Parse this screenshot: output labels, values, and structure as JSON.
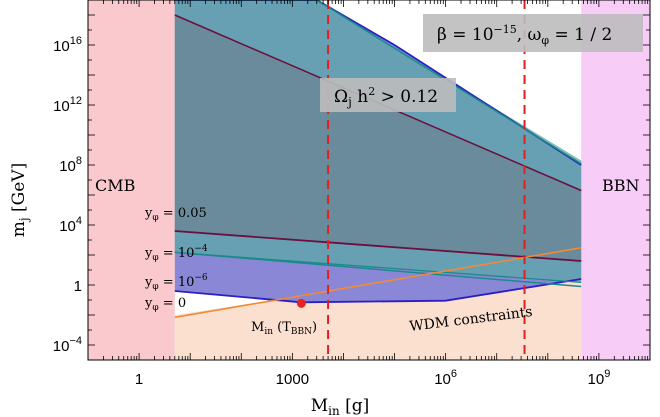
{
  "chart_data": {
    "type": "area",
    "x_scale": "log10",
    "y_scale": "log10",
    "xlim": [
      0.1,
      10000000000.0
    ],
    "ylim": [
      1e-05,
      1e+19
    ],
    "xlabel": "M_in [g]",
    "ylabel": "m_j [GeV]",
    "x_ticks": [
      {
        "value": 1,
        "label": "1"
      },
      {
        "value": 1000,
        "label": "1000"
      },
      {
        "value": 1000000.0,
        "label": "10^6"
      },
      {
        "value": 1000000000.0,
        "label": "10^9"
      }
    ],
    "y_ticks": [
      {
        "value": 0.0001,
        "label": "10^-4"
      },
      {
        "value": 1,
        "label": "1"
      },
      {
        "value": 10000.0,
        "label": "10^4"
      },
      {
        "value": 100000000.0,
        "label": "10^8"
      },
      {
        "value": 1000000000000.0,
        "label": "10^12"
      },
      {
        "value": 1e+16,
        "label": "10^16"
      }
    ],
    "excluded_regions": [
      {
        "label": "CMB",
        "x_range": [
          0.1,
          5
        ],
        "color": "#f9c9cd"
      },
      {
        "label": "BBN",
        "x_range": [
          450000000.0,
          10000000000.0
        ],
        "color": "#f7ccf7"
      },
      {
        "label": "WDM constraints",
        "color": "#fbe0cf",
        "boundary": [
          [
            5,
            0.01
          ],
          [
            10000.0,
            0.5
          ],
          [
            1000000.0,
            0.1
          ],
          [
            450000000.0,
            2.5
          ]
        ]
      }
    ],
    "vertical_lines": [
      {
        "x": 5000,
        "style": "dashed",
        "color": "#e02020"
      },
      {
        "x": 35000000.0,
        "style": "dashed",
        "color": "#e02020"
      }
    ],
    "point": {
      "label": "M_in (T_BBN)",
      "x": 1500,
      "y": 0.06,
      "color": "#e8231e"
    },
    "series": [
      {
        "label": "y_φ = 0",
        "color": "#2a1fc4",
        "lower": [
          [
            5,
            0.4
          ],
          [
            1500,
            0.07
          ],
          [
            1000000.0,
            0.09
          ],
          [
            450000000.0,
            2.5
          ]
        ],
        "upper": [
          [
            5,
            1e+19
          ],
          [
            3000,
            1e+19
          ],
          [
            100000.0,
            1e+16
          ],
          [
            450000000.0,
            100000000.0
          ]
        ]
      },
      {
        "label": "y_φ = 10^-6",
        "color": "#4da7a8",
        "lower": [
          [
            5,
            150.0
          ],
          [
            450000000.0,
            1.5
          ]
        ],
        "upper": [
          [
            5,
            1e+19
          ],
          [
            3000,
            1e+19
          ],
          [
            450000000.0,
            200000000.0
          ]
        ]
      },
      {
        "label": "y_φ = 10^-4",
        "color": "#1a8a8a",
        "line": [
          [
            5,
            150
          ],
          [
            450000000.0,
            0.8
          ]
        ]
      },
      {
        "label": "y_φ = 0.05",
        "color": "#6b0f3e",
        "line": [
          [
            5,
            4000
          ],
          [
            450000000.0,
            40
          ]
        ]
      },
      {
        "label": "upper_curve_teal",
        "color": "#1a8a8a",
        "line": [
          [
            5,
            1e+19
          ],
          [
            3000,
            1e+19
          ],
          [
            450000000.0,
            120000000.0
          ]
        ]
      },
      {
        "label": "upper_curve_maroon",
        "color": "#6b0f3e",
        "line": [
          [
            5,
            1e+18
          ],
          [
            450000000.0,
            2000000.0
          ]
        ]
      }
    ],
    "orange_boundary": {
      "color": "#f28a34",
      "line": [
        [
          5,
          0.007
        ],
        [
          450000000.0,
          300
        ]
      ]
    },
    "annotations": [
      {
        "text": "Ω_j h^2 > 0.12"
      },
      {
        "text": "β = 10^-15, ω_φ = 1/2"
      }
    ]
  }
}
